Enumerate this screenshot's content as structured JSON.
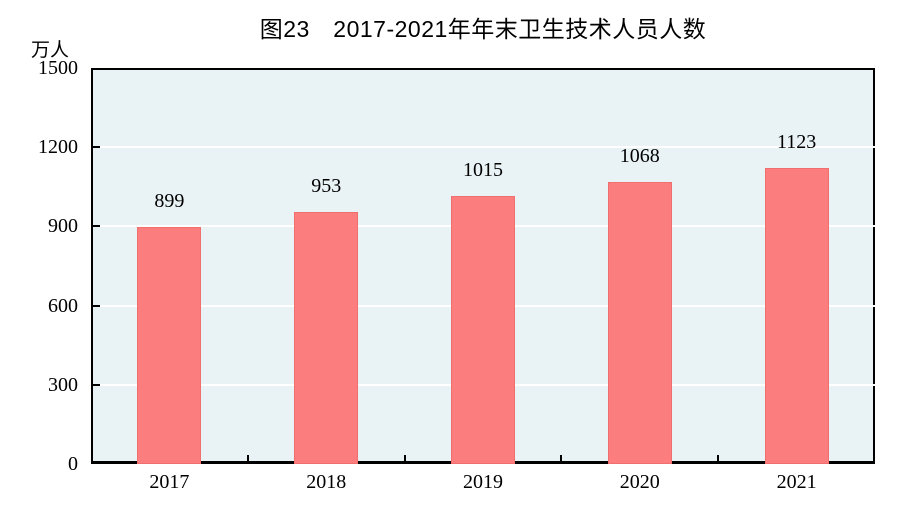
{
  "chart_data": {
    "type": "bar",
    "title": "图23　2017-2021年年末卫生技术人员人数",
    "unit_label": "万人",
    "categories": [
      "2017",
      "2018",
      "2019",
      "2020",
      "2021"
    ],
    "values": [
      899,
      953,
      1015,
      1068,
      1123
    ],
    "xlabel": "",
    "ylabel": "万人",
    "ylim": [
      0,
      1500
    ],
    "yticks": [
      0,
      300,
      600,
      900,
      1200,
      1500
    ],
    "grid": "horizontal white gridlines at y-ticks, drawn behind bars",
    "legend": "none",
    "value_labels": "above each bar",
    "colors": {
      "bar_fill": "#FC7D7D",
      "bar_edge": "#F06E6E",
      "plot_background": "#E9F2F5",
      "gridline": "#FFFFFF",
      "axis": "#000000",
      "text": "#000000",
      "page_background": "#FFFFFF"
    }
  }
}
